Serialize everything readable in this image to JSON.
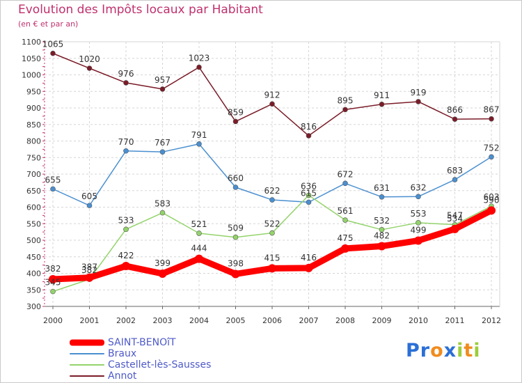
{
  "title": "Evolution des Impôts locaux par Habitant",
  "subtitle": "(en € et par an)",
  "logo": {
    "letters": [
      "P",
      "r",
      "o",
      "x",
      "i",
      "t",
      "i"
    ],
    "colors": [
      "#2b6fd6",
      "#2b6fd6",
      "#f08c1e",
      "#2b6fd6",
      "#9ccd3c",
      "#f08c1e",
      "#9ccd3c"
    ]
  },
  "chart_data": {
    "type": "line",
    "title": "Evolution des Impôts locaux par Habitant",
    "subtitle": "(en € et par an)",
    "x": [
      "2000",
      "2001",
      "2002",
      "2003",
      "2004",
      "2005",
      "2006",
      "2007",
      "2008",
      "2009",
      "2010",
      "2011",
      "2012"
    ],
    "ylim": [
      300,
      1100
    ],
    "yticks": [
      "300",
      "350",
      "400",
      "450",
      "500",
      "550",
      "600",
      "650",
      "700",
      "750",
      "800",
      "850",
      "900",
      "950",
      "1000",
      "1050",
      "1100"
    ],
    "grid": true,
    "legend_position": "bottom-left",
    "series": [
      {
        "name": "SAINT-BENOîT",
        "color": "#ff0000",
        "emphasis": true,
        "values": [
          382,
          387,
          422,
          399,
          444,
          398,
          415,
          416,
          475,
          482,
          499,
          534,
          590
        ]
      },
      {
        "name": "Braux",
        "color": "#4a8fd0",
        "emphasis": false,
        "values": [
          655,
          605,
          770,
          767,
          791,
          660,
          622,
          615,
          672,
          631,
          632,
          683,
          752
        ]
      },
      {
        "name": "Castellet-lès-Sausses",
        "color": "#93d36b",
        "emphasis": false,
        "values": [
          345,
          382,
          533,
          583,
          521,
          509,
          522,
          636,
          561,
          532,
          553,
          547,
          603
        ]
      },
      {
        "name": "Annot",
        "color": "#7b1c28",
        "emphasis": false,
        "values": [
          1065,
          1020,
          976,
          957,
          1023,
          859,
          912,
          816,
          895,
          911,
          919,
          866,
          867
        ]
      }
    ]
  }
}
